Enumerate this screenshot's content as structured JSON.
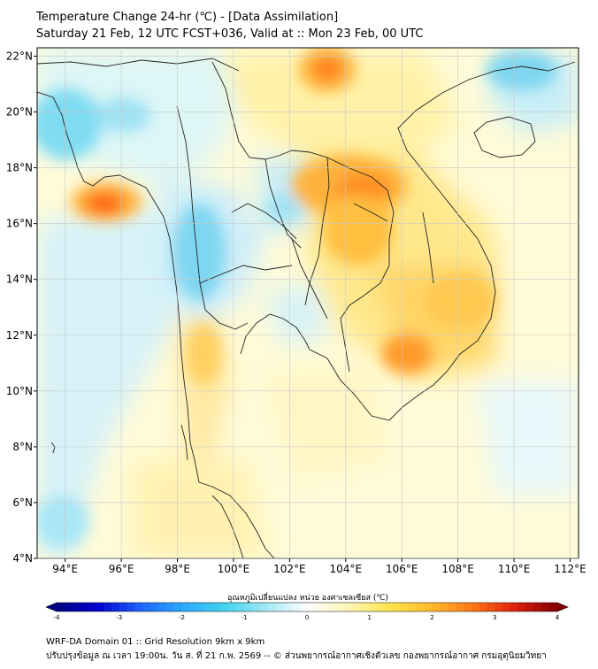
{
  "header": {
    "title_line1": "Temperature Change 24-hr (℃) - [Data Assimilation]",
    "title_line2": "Saturday 21 Feb, 12 UTC FCST+036, Valid at :: Mon 23 Feb, 00 UTC"
  },
  "map": {
    "lat_labels": [
      "22°N",
      "20°N",
      "18°N",
      "16°N",
      "14°N",
      "12°N",
      "10°N",
      "8°N",
      "6°N",
      "4°N"
    ],
    "lon_labels": [
      "94°E",
      "96°E",
      "98°E",
      "100°E",
      "102°E",
      "104°E",
      "106°E",
      "108°E",
      "110°E",
      "112°E"
    ],
    "lat_range": [
      4,
      22.3
    ],
    "lon_range": [
      93,
      112.3
    ],
    "warm_cells": [
      {
        "lon": 103.0,
        "lat": 21.3,
        "delta": 2.8
      },
      {
        "lon": 95.6,
        "lat": 16.6,
        "delta": 3.0
      },
      {
        "lon": 104.4,
        "lat": 17.2,
        "delta": 2.7
      },
      {
        "lon": 105.0,
        "lat": 16.2,
        "delta": 2.4
      },
      {
        "lon": 106.7,
        "lat": 11.1,
        "delta": 2.6
      },
      {
        "lon": 107.6,
        "lat": 13.3,
        "delta": 2.0
      },
      {
        "lon": 98.5,
        "lat": 11.0,
        "delta": 1.6
      }
    ],
    "cool_cells": [
      {
        "lon": 99.3,
        "lat": 15.5,
        "delta": -1.1
      },
      {
        "lon": 94.2,
        "lat": 19.3,
        "delta": -0.9
      },
      {
        "lon": 110.5,
        "lat": 21.0,
        "delta": -1.0
      },
      {
        "lon": 101.8,
        "lat": 16.5,
        "delta": -0.8
      },
      {
        "lon": 94.5,
        "lat": 6.5,
        "delta": -0.6
      },
      {
        "lon": 97.5,
        "lat": 4.5,
        "delta": -0.6
      }
    ]
  },
  "colorbar": {
    "label": "อุณหภูมิเปลี่ยนแปลง หน่วย องศาเซลเซียส (℃)",
    "ticks": [
      "-4",
      "-3",
      "-2",
      "-1",
      "0",
      "1",
      "2",
      "3",
      "4"
    ],
    "min": -4,
    "max": 4,
    "colors": [
      "#000080",
      "#0000cd",
      "#1e64ff",
      "#2aa8ff",
      "#3fd2f0",
      "#9fe8f6",
      "#ffffff",
      "#fff6b4",
      "#ffe34a",
      "#ffb92a",
      "#ff7414",
      "#dc1e0a",
      "#820000"
    ]
  },
  "footer": {
    "line1": "WRF-DA Domain 01 :: Grid Resolution 9km x 9km",
    "line2": "ปรับปรุงข้อมูล ณ เวลา 19:00น. วัน ส. ที่ 21 ก.พ. 2569 -- © ส่วนพยากรณ์อากาศเชิงตัวเลข กองพยากรณ์อากาศ กรมอุตุนิยมวิทยา"
  }
}
